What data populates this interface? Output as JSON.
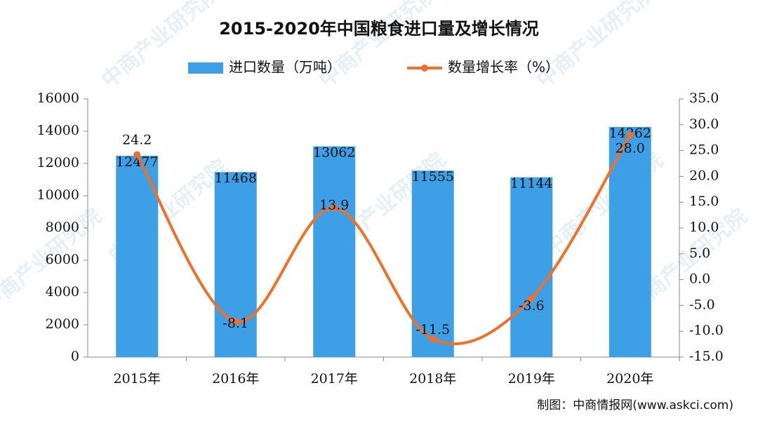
{
  "chart_data": {
    "type": "combo",
    "title": "2015-2020年中国粮食进口量及增长情况",
    "source": "制图：中商情报网(www.askci.com)",
    "watermark": "中商产业研究院",
    "legend": "top",
    "categories": [
      "2015年",
      "2016年",
      "2017年",
      "2018年",
      "2019年",
      "2020年"
    ],
    "series": [
      {
        "name": "进口数量（万吨）",
        "type": "bar",
        "color": "#3d9fe6",
        "values": [
          12477,
          11468,
          13062,
          11555,
          11144,
          14262
        ]
      },
      {
        "name": "数量增长率（%）",
        "type": "line",
        "axis": "y2",
        "color": "#f07027",
        "values": [
          24.2,
          -8.1,
          13.9,
          -11.5,
          -3.6,
          28.0
        ],
        "value_labels": [
          "24.2",
          "-8.1",
          "13.9",
          "-11.5",
          "-3.6",
          "28.0"
        ]
      }
    ],
    "ylim": [
      0,
      16000
    ],
    "yticks": [
      0,
      2000,
      4000,
      6000,
      8000,
      10000,
      12000,
      14000,
      16000
    ],
    "y2lim": [
      -15,
      35
    ],
    "y2ticks": [
      {
        "value": -15,
        "label": "-15.0"
      },
      {
        "value": -10,
        "label": "-10.0"
      },
      {
        "value": -5,
        "label": "-5.0"
      },
      {
        "value": 0,
        "label": "0.0"
      },
      {
        "value": 5,
        "label": "5.0"
      },
      {
        "value": 10,
        "label": "10.0"
      },
      {
        "value": 15,
        "label": "15.0"
      },
      {
        "value": 20,
        "label": "20.0"
      },
      {
        "value": 25,
        "label": "25.0"
      },
      {
        "value": 30,
        "label": "30.0"
      },
      {
        "value": 35,
        "label": "35.0"
      }
    ]
  }
}
